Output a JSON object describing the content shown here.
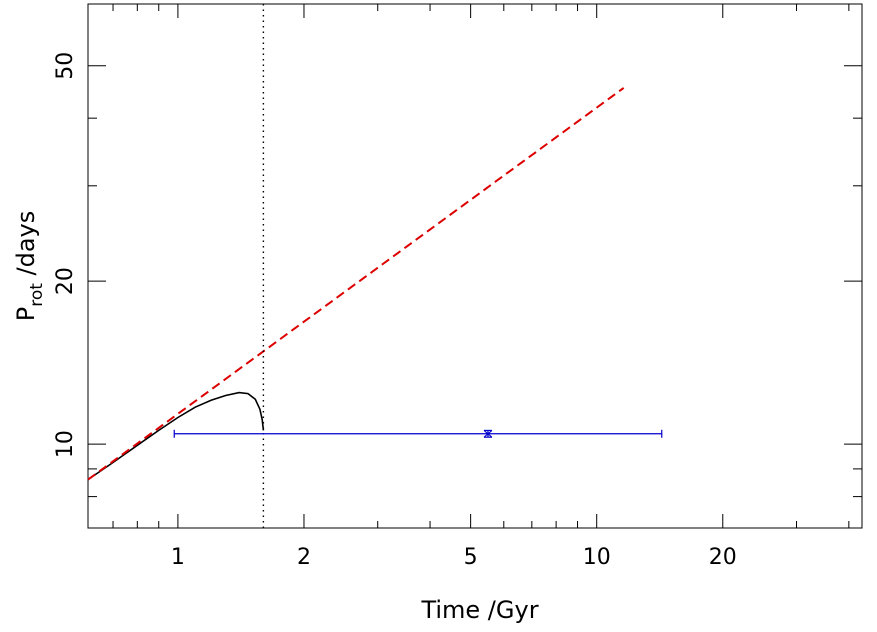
{
  "chart_data": {
    "type": "line",
    "title": "",
    "xlabel": "Time /Gyr",
    "ylabel": {
      "main": "P",
      "subscript": "rot",
      "rest": " /days"
    },
    "x_scale": "log",
    "y_scale": "log",
    "xlim": [
      0.61,
      43
    ],
    "ylim": [
      7.0,
      65
    ],
    "x_ticks": {
      "major": [
        1,
        2,
        5,
        10,
        20
      ],
      "major_labels": [
        "1",
        "2",
        "5",
        "10",
        "20"
      ],
      "minor": [
        0.7,
        0.8,
        0.9,
        3,
        4,
        6,
        7,
        8,
        9,
        30,
        40
      ]
    },
    "y_ticks": {
      "major": [
        10,
        20,
        50
      ],
      "major_labels": [
        "10",
        "20",
        "50"
      ],
      "minor": [
        8,
        9,
        30,
        40
      ]
    },
    "grid": false,
    "legend": "none",
    "series": [
      {
        "style": "solid",
        "color": "#000000",
        "x": [
          0.61,
          0.7,
          0.8,
          0.9,
          1.0,
          1.1,
          1.2,
          1.3,
          1.4,
          1.47,
          1.53,
          1.57,
          1.59,
          1.6
        ],
        "y": [
          8.6,
          9.25,
          9.95,
          10.6,
          11.2,
          11.7,
          12.05,
          12.3,
          12.45,
          12.4,
          12.1,
          11.6,
          11.1,
          10.6
        ]
      },
      {
        "style": "dashed",
        "color": "#dd0000",
        "x": [
          0.61,
          11.6
        ],
        "y": [
          8.6,
          45.5
        ]
      }
    ],
    "reference_lines": [
      {
        "orientation": "vertical",
        "x": 1.6,
        "style": "dotted",
        "color": "#000000"
      }
    ],
    "error_bars": [
      {
        "x": 5.5,
        "y": 10.45,
        "x_low": 0.98,
        "x_high": 14.3,
        "y_low": 10.3,
        "y_high": 10.6,
        "color": "#0000cc"
      }
    ]
  }
}
